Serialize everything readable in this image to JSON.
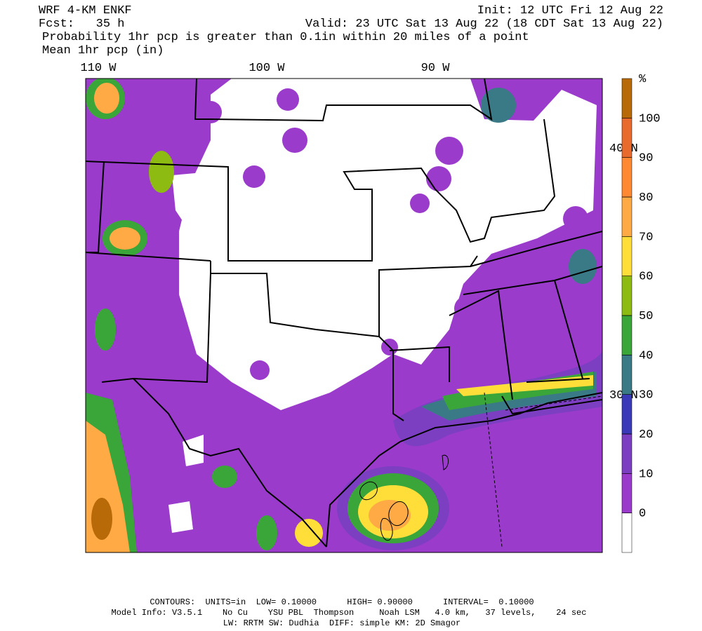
{
  "header": {
    "model": "WRF 4-KM ENKF",
    "forecast": "Fcst:   35 h",
    "init": "Init: 12 UTC Fri 12 Aug 22",
    "valid": "Valid: 23 UTC Sat 13 Aug 22 (18 CDT Sat 13 Aug 22)",
    "field": "Probability 1hr pcp is greater than 0.1in within 20 miles of a point",
    "contour_field": "Mean 1hr pcp (in)"
  },
  "map": {
    "longitude_labels": [
      "110 W",
      "100 W",
      "90 W"
    ],
    "latitude_labels": [
      "40 N",
      "30 N"
    ]
  },
  "colorbar": {
    "unit": "%",
    "ticks": [
      0,
      10,
      20,
      30,
      40,
      50,
      60,
      70,
      80,
      90,
      100
    ],
    "colors": [
      "#ffffff",
      "#9a3bcc",
      "#7c3fc2",
      "#3a3ab8",
      "#3a7a86",
      "#3aa63a",
      "#8dbb11",
      "#ffde3a",
      "#ffaa44",
      "#ff8833",
      "#e86a2c",
      "#b86a08"
    ]
  },
  "footer": {
    "contours": "CONTOURS:  UNITS=in  LOW= 0.10000      HIGH= 0.90000      INTERVAL=  0.10000",
    "model_info": "Model Info: V3.5.1    No Cu    YSU PBL  Thompson     Noah LSM   4.0 km,   37 levels,    24 sec",
    "physics": "LW: RRTM SW: Dudhia  DIFF: simple KM: 2D Smagor"
  }
}
